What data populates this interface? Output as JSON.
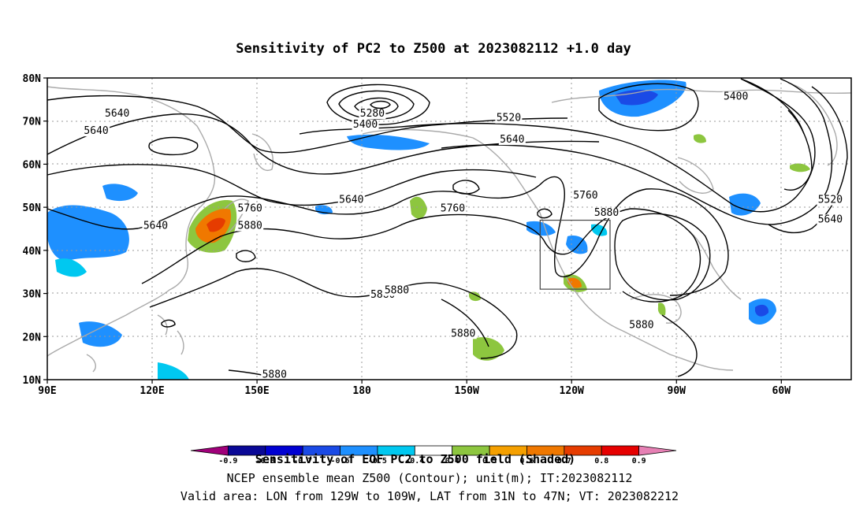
{
  "title": "Sensitivity of PC2 to Z500 at 2023082112 +1.0 day",
  "axes": {
    "lat_ticks": [
      "80N",
      "70N",
      "60N",
      "50N",
      "40N",
      "30N",
      "20N",
      "10N"
    ],
    "lon_ticks": [
      "90E",
      "120E",
      "150E",
      "180",
      "150W",
      "120W",
      "90W",
      "60W"
    ],
    "lon_range": [
      90,
      320
    ],
    "lat_range": [
      10,
      80
    ]
  },
  "contour_labels": [
    {
      "text": "5640",
      "lon": 110,
      "lat": 71
    },
    {
      "text": "5640",
      "lon": 104,
      "lat": 67
    },
    {
      "text": "5280",
      "lon": 183,
      "lat": 71
    },
    {
      "text": "5400",
      "lon": 181,
      "lat": 68.5
    },
    {
      "text": "5520",
      "lon": 222,
      "lat": 70
    },
    {
      "text": "5640",
      "lon": 223,
      "lat": 65
    },
    {
      "text": "5400",
      "lon": 287,
      "lat": 75
    },
    {
      "text": "5520",
      "lon": 314,
      "lat": 51
    },
    {
      "text": "5640",
      "lon": 314,
      "lat": 46.5
    },
    {
      "text": "5760",
      "lon": 244,
      "lat": 52
    },
    {
      "text": "5880",
      "lon": 250,
      "lat": 48
    },
    {
      "text": "5760",
      "lon": 206,
      "lat": 49
    },
    {
      "text": "5640",
      "lon": 177,
      "lat": 51
    },
    {
      "text": "5760",
      "lon": 148,
      "lat": 49
    },
    {
      "text": "5880",
      "lon": 148,
      "lat": 45
    },
    {
      "text": "5640",
      "lon": 121,
      "lat": 45
    },
    {
      "text": "5880",
      "lon": 186,
      "lat": 29
    },
    {
      "text": "5880",
      "lon": 190,
      "lat": 30
    },
    {
      "text": "5880",
      "lon": 209,
      "lat": 20
    },
    {
      "text": "5880",
      "lon": 260,
      "lat": 22
    },
    {
      "text": "5880",
      "lon": 155,
      "lat": 10.5
    }
  ],
  "valid_box": {
    "lon": [
      231,
      251
    ],
    "lat": [
      31,
      47
    ]
  },
  "colorbar": {
    "colors": [
      "#a0007a",
      "#0a0896",
      "#0000d2",
      "#1a4ae6",
      "#1e90ff",
      "#00c8f0",
      "#ffffff",
      "#8dc63f",
      "#f5a000",
      "#f07800",
      "#e63c00",
      "#e60000",
      "#e680b4"
    ],
    "labels": [
      "-0.9",
      "-0.8",
      "-0.7",
      "-0.6",
      "-0.5",
      "-0.4",
      "0.4",
      "0.5",
      "0.6",
      "0.7",
      "0.8",
      "0.9"
    ]
  },
  "footer": {
    "line1": "Sensitivity of EOF PC2 to Z500 field (Shaded)",
    "line2": "NCEP ensemble mean Z500 (Contour); unit(m); IT:2023082112",
    "line3": "Valid area: LON from 129W to 109W, LAT from 31N to 47N; VT: 2023082212"
  }
}
